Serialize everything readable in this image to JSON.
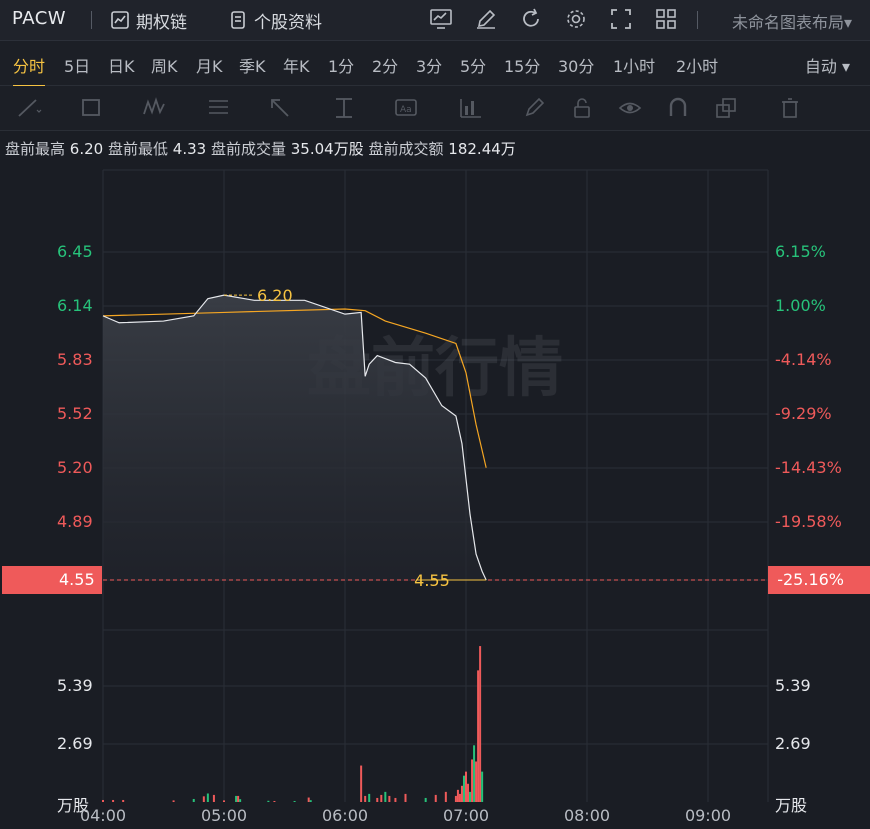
{
  "topbar": {
    "ticker": "PACW",
    "options_chain_label": "期权链",
    "stock_profile_label": "个股资料",
    "layout_label": "未命名图表布局▾"
  },
  "periods": {
    "items": [
      "分时",
      "5日",
      "日K",
      "周K",
      "月K",
      "季K",
      "年K",
      "1分",
      "2分",
      "3分",
      "5分",
      "15分",
      "30分",
      "1小时",
      "2小时"
    ],
    "active_index": 0,
    "auto_label": "自动 ▾"
  },
  "info": {
    "high_label": "盘前最高",
    "high_value": "6.20",
    "low_label": "盘前最低",
    "low_value": "4.33",
    "volume_label": "盘前成交量",
    "volume_value": "35.04万股",
    "amount_label": "盘前成交额",
    "amount_value": "182.44万"
  },
  "watermark": "盘前行情",
  "price_axis": {
    "left": [
      {
        "text": "6.45",
        "color": "green"
      },
      {
        "text": "6.14",
        "color": "green"
      },
      {
        "text": "5.83",
        "color": "red"
      },
      {
        "text": "5.52",
        "color": "red"
      },
      {
        "text": "5.20",
        "color": "red"
      },
      {
        "text": "4.89",
        "color": "red"
      }
    ],
    "right": [
      {
        "text": "6.15%",
        "color": "green"
      },
      {
        "text": "1.00%",
        "color": "green"
      },
      {
        "text": "-4.14%",
        "color": "red"
      },
      {
        "text": "-9.29%",
        "color": "red"
      },
      {
        "text": "-14.43%",
        "color": "red"
      },
      {
        "text": "-19.58%",
        "color": "red"
      }
    ],
    "current_price": "4.55",
    "current_pct": "-25.16%",
    "peak_label": "6.20",
    "last_label": "4.55"
  },
  "volume_axis": {
    "left": [
      "5.39",
      "2.69",
      "万股"
    ],
    "right": [
      "5.39",
      "2.69",
      "万股"
    ]
  },
  "time_axis": [
    "04:00",
    "05:00",
    "06:00",
    "07:00",
    "08:00",
    "09:00"
  ],
  "chart_data": {
    "type": "line",
    "title": "盘前行情",
    "x_range": [
      "04:00",
      "09:30"
    ],
    "y_range": [
      4.55,
      6.45
    ],
    "series": [
      {
        "name": "price",
        "x": [
          "04:00",
          "04:08",
          "04:30",
          "04:45",
          "04:52",
          "05:00",
          "05:15",
          "05:40",
          "06:00",
          "06:08",
          "06:10",
          "06:12",
          "06:16",
          "06:25",
          "06:32",
          "06:40",
          "06:48",
          "06:55",
          "06:58",
          "07:02",
          "07:05",
          "07:08",
          "07:10"
        ],
        "y": [
          6.08,
          6.04,
          6.05,
          6.08,
          6.18,
          6.2,
          6.17,
          6.17,
          6.09,
          6.1,
          5.73,
          5.8,
          5.85,
          5.81,
          5.8,
          5.72,
          5.56,
          5.5,
          5.34,
          4.93,
          4.7,
          4.6,
          4.55
        ]
      },
      {
        "name": "average",
        "x": [
          "04:00",
          "05:00",
          "06:00",
          "06:10",
          "06:20",
          "06:40",
          "06:55",
          "07:00",
          "07:05",
          "07:10"
        ],
        "y": [
          6.08,
          6.1,
          6.12,
          6.11,
          6.05,
          5.98,
          5.92,
          5.75,
          5.45,
          5.2
        ]
      }
    ],
    "volume_unit": "万股",
    "volume_ylim": [
      0,
      8.0
    ],
    "volume_series": {
      "x": [
        "04:00",
        "04:05",
        "04:10",
        "04:35",
        "04:45",
        "04:50",
        "04:52",
        "04:55",
        "05:00",
        "05:06",
        "05:07",
        "05:08",
        "05:22",
        "05:25",
        "05:35",
        "05:42",
        "05:43",
        "06:08",
        "06:10",
        "06:12",
        "06:16",
        "06:18",
        "06:20",
        "06:22",
        "06:25",
        "06:30",
        "06:40",
        "06:45",
        "06:50",
        "06:55",
        "06:56",
        "06:57",
        "06:58",
        "06:59",
        "07:00",
        "07:01",
        "07:02",
        "07:03",
        "07:04",
        "07:05",
        "07:06",
        "07:07",
        "07:08"
      ],
      "y": [
        0.1,
        0.1,
        0.1,
        0.08,
        0.15,
        0.28,
        0.42,
        0.35,
        0.08,
        0.3,
        0.3,
        0.14,
        0.06,
        0.05,
        0.05,
        0.22,
        0.09,
        1.8,
        0.3,
        0.4,
        0.2,
        0.35,
        0.5,
        0.3,
        0.2,
        0.4,
        0.2,
        0.35,
        0.5,
        0.3,
        0.6,
        0.4,
        0.8,
        1.3,
        1.5,
        0.9,
        0.5,
        2.1,
        2.8,
        2.0,
        6.5,
        7.7,
        1.5
      ],
      "colors": [
        "red",
        "red",
        "red",
        "red",
        "green",
        "red",
        "green",
        "red",
        "red",
        "green",
        "red",
        "green",
        "green",
        "red",
        "green",
        "red",
        "green",
        "red",
        "red",
        "green",
        "red",
        "red",
        "green",
        "red",
        "red",
        "red",
        "green",
        "red",
        "red",
        "red",
        "red",
        "red",
        "red",
        "green",
        "red",
        "red",
        "green",
        "red",
        "green",
        "red",
        "red",
        "red",
        "green"
      ]
    },
    "colors": {
      "price_line": "#e6e8ec",
      "avg_line": "#f5a623",
      "up": "#27c27a",
      "down": "#ef5a5a",
      "grid": "#2a2e37"
    }
  }
}
